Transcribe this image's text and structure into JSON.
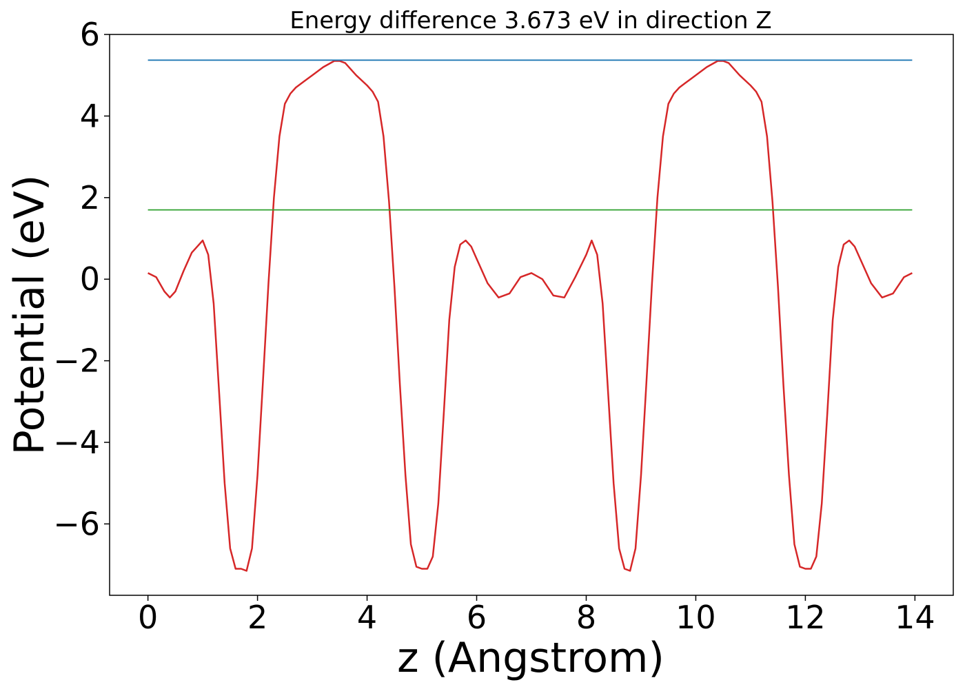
{
  "chart_data": {
    "type": "line",
    "title": "Energy difference 3.673 eV in direction Z",
    "xlabel": "z (Angstrom)",
    "ylabel": "Potential (eV)",
    "xlim": [
      -0.7,
      14.7
    ],
    "ylim": [
      -7.75,
      6.0
    ],
    "xticks": [
      0,
      2,
      4,
      6,
      8,
      10,
      12,
      14
    ],
    "xtick_labels": [
      "0",
      "2",
      "4",
      "6",
      "8",
      "10",
      "12",
      "14"
    ],
    "yticks": [
      -6,
      -4,
      -2,
      0,
      2,
      4,
      6
    ],
    "ytick_labels": [
      "−6",
      "−4",
      "−2",
      "0",
      "2",
      "4",
      "6"
    ],
    "grid": false,
    "legend": "none",
    "series": [
      {
        "color": "#d62728",
        "x": [
          0.0,
          0.15,
          0.3,
          0.4,
          0.5,
          0.65,
          0.8,
          0.9,
          1.0,
          1.1,
          1.2,
          1.3,
          1.4,
          1.5,
          1.6,
          1.7,
          1.8,
          1.9,
          2.0,
          2.1,
          2.2,
          2.3,
          2.4,
          2.5,
          2.6,
          2.7,
          2.8,
          2.9,
          3.0,
          3.2,
          3.4,
          3.5,
          3.6,
          3.8,
          4.0,
          4.1,
          4.2,
          4.3,
          4.4,
          4.5,
          4.6,
          4.7,
          4.8,
          4.9,
          5.0,
          5.1,
          5.2,
          5.3,
          5.4,
          5.5,
          5.6,
          5.7,
          5.8,
          5.9,
          6.0,
          6.2,
          6.4,
          6.6,
          6.8,
          7.0,
          7.2,
          7.4,
          7.6,
          7.8,
          8.0,
          8.1,
          8.2,
          8.3,
          8.4,
          8.5,
          8.6,
          8.7,
          8.8,
          8.9,
          9.0,
          9.1,
          9.2,
          9.3,
          9.4,
          9.5,
          9.6,
          9.7,
          9.8,
          9.9,
          10.0,
          10.2,
          10.4,
          10.5,
          10.6,
          10.8,
          11.0,
          11.1,
          11.2,
          11.3,
          11.4,
          11.5,
          11.6,
          11.7,
          11.8,
          11.9,
          12.0,
          12.1,
          12.2,
          12.3,
          12.4,
          12.5,
          12.6,
          12.7,
          12.8,
          12.9,
          13.0,
          13.2,
          13.4,
          13.6,
          13.8,
          13.95
        ],
        "y": [
          0.15,
          0.05,
          -0.3,
          -0.45,
          -0.3,
          0.2,
          0.65,
          0.8,
          0.95,
          0.6,
          -0.6,
          -2.8,
          -5.0,
          -6.6,
          -7.1,
          -7.1,
          -7.15,
          -6.6,
          -4.8,
          -2.5,
          -0.1,
          2.0,
          3.5,
          4.3,
          4.55,
          4.7,
          4.8,
          4.9,
          5.0,
          5.2,
          5.35,
          5.35,
          5.3,
          5.0,
          4.75,
          4.6,
          4.35,
          3.5,
          1.9,
          -0.2,
          -2.6,
          -4.8,
          -6.5,
          -7.05,
          -7.1,
          -7.1,
          -6.8,
          -5.5,
          -3.3,
          -1.0,
          0.3,
          0.85,
          0.95,
          0.8,
          0.5,
          -0.1,
          -0.45,
          -0.35,
          0.05,
          0.15,
          0.0,
          -0.4,
          -0.45,
          0.05,
          0.6,
          0.95,
          0.6,
          -0.6,
          -2.8,
          -5.0,
          -6.6,
          -7.1,
          -7.15,
          -6.6,
          -4.8,
          -2.5,
          -0.1,
          2.0,
          3.5,
          4.3,
          4.55,
          4.7,
          4.8,
          4.9,
          5.0,
          5.2,
          5.35,
          5.35,
          5.3,
          5.0,
          4.75,
          4.6,
          4.35,
          3.5,
          1.9,
          -0.2,
          -2.6,
          -4.8,
          -6.5,
          -7.05,
          -7.1,
          -7.1,
          -6.8,
          -5.5,
          -3.3,
          -1.0,
          0.3,
          0.85,
          0.95,
          0.8,
          0.5,
          -0.1,
          -0.45,
          -0.35,
          0.05,
          0.15
        ]
      },
      {
        "color": "#1f77b4",
        "x": [
          0.0,
          13.95
        ],
        "y": [
          5.37,
          5.37
        ]
      },
      {
        "color": "#2ca02c",
        "x": [
          0.0,
          13.95
        ],
        "y": [
          1.7,
          1.7
        ]
      }
    ]
  }
}
